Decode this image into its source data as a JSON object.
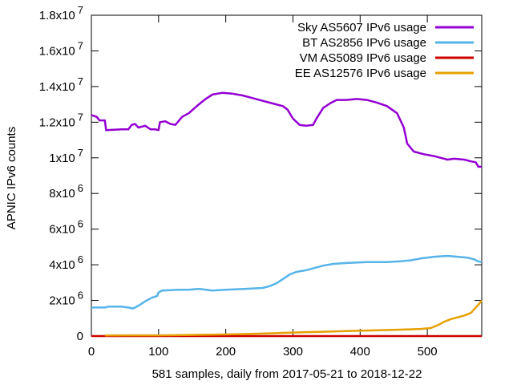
{
  "chart_data": {
    "type": "line",
    "title": "",
    "xlabel": "581 samples, daily from 2017-05-21 to 2018-12-22",
    "ylabel": "APNIC IPv6 counts",
    "xlim": [
      0,
      581
    ],
    "ylim": [
      0,
      18000000
    ],
    "grid": false,
    "legend_position": "top-right",
    "x_ticks": [
      {
        "value": 0,
        "label": "0"
      },
      {
        "value": 100,
        "label": "100"
      },
      {
        "value": 200,
        "label": "200"
      },
      {
        "value": 300,
        "label": "300"
      },
      {
        "value": 400,
        "label": "400"
      },
      {
        "value": 500,
        "label": "500"
      }
    ],
    "y_ticks": [
      {
        "value": 0,
        "base": "0",
        "exp": ""
      },
      {
        "value": 2000000,
        "base": "2x10",
        "exp": "6"
      },
      {
        "value": 4000000,
        "base": "4x10",
        "exp": "6"
      },
      {
        "value": 6000000,
        "base": "6x10",
        "exp": "6"
      },
      {
        "value": 8000000,
        "base": "8x10",
        "exp": "6"
      },
      {
        "value": 10000000,
        "base": "1x10",
        "exp": "7"
      },
      {
        "value": 12000000,
        "base": "1.2x10",
        "exp": "7"
      },
      {
        "value": 14000000,
        "base": "1.4x10",
        "exp": "7"
      },
      {
        "value": 16000000,
        "base": "1.6x10",
        "exp": "7"
      },
      {
        "value": 18000000,
        "base": "1.8x10",
        "exp": "7"
      }
    ],
    "series": [
      {
        "name": "Sky AS5607 IPv6 usage",
        "color": "#9400d3",
        "points": [
          [
            0,
            12400000
          ],
          [
            8,
            12300000
          ],
          [
            12,
            12100000
          ],
          [
            20,
            12100000
          ],
          [
            22,
            11550000
          ],
          [
            45,
            11600000
          ],
          [
            55,
            11600000
          ],
          [
            60,
            11850000
          ],
          [
            65,
            11900000
          ],
          [
            70,
            11700000
          ],
          [
            80,
            11800000
          ],
          [
            88,
            11600000
          ],
          [
            95,
            11600000
          ],
          [
            100,
            11550000
          ],
          [
            102,
            12000000
          ],
          [
            110,
            12050000
          ],
          [
            118,
            11900000
          ],
          [
            125,
            11850000
          ],
          [
            135,
            12300000
          ],
          [
            145,
            12500000
          ],
          [
            160,
            13000000
          ],
          [
            170,
            13300000
          ],
          [
            180,
            13550000
          ],
          [
            195,
            13650000
          ],
          [
            210,
            13600000
          ],
          [
            225,
            13500000
          ],
          [
            240,
            13350000
          ],
          [
            255,
            13200000
          ],
          [
            270,
            13050000
          ],
          [
            285,
            12900000
          ],
          [
            292,
            12700000
          ],
          [
            300,
            12200000
          ],
          [
            310,
            11850000
          ],
          [
            320,
            11800000
          ],
          [
            330,
            11850000
          ],
          [
            335,
            12200000
          ],
          [
            345,
            12800000
          ],
          [
            355,
            13050000
          ],
          [
            365,
            13250000
          ],
          [
            380,
            13250000
          ],
          [
            395,
            13300000
          ],
          [
            410,
            13250000
          ],
          [
            425,
            13100000
          ],
          [
            440,
            12900000
          ],
          [
            455,
            12500000
          ],
          [
            465,
            11700000
          ],
          [
            470,
            10800000
          ],
          [
            480,
            10350000
          ],
          [
            495,
            10200000
          ],
          [
            510,
            10100000
          ],
          [
            520,
            10000000
          ],
          [
            530,
            9900000
          ],
          [
            540,
            9950000
          ],
          [
            555,
            9900000
          ],
          [
            565,
            9800000
          ],
          [
            572,
            9750000
          ],
          [
            576,
            9500000
          ],
          [
            581,
            9500000
          ]
        ]
      },
      {
        "name": "BT AS2856 IPv6 usage",
        "color": "#56b4e9",
        "points": [
          [
            0,
            1600000
          ],
          [
            20,
            1600000
          ],
          [
            25,
            1650000
          ],
          [
            45,
            1650000
          ],
          [
            55,
            1600000
          ],
          [
            62,
            1550000
          ],
          [
            70,
            1700000
          ],
          [
            80,
            1950000
          ],
          [
            90,
            2150000
          ],
          [
            98,
            2250000
          ],
          [
            100,
            2450000
          ],
          [
            105,
            2550000
          ],
          [
            130,
            2600000
          ],
          [
            145,
            2600000
          ],
          [
            160,
            2650000
          ],
          [
            180,
            2550000
          ],
          [
            200,
            2600000
          ],
          [
            230,
            2650000
          ],
          [
            255,
            2700000
          ],
          [
            265,
            2800000
          ],
          [
            275,
            2950000
          ],
          [
            285,
            3200000
          ],
          [
            295,
            3450000
          ],
          [
            305,
            3600000
          ],
          [
            320,
            3700000
          ],
          [
            335,
            3850000
          ],
          [
            345,
            3950000
          ],
          [
            360,
            4050000
          ],
          [
            380,
            4100000
          ],
          [
            410,
            4150000
          ],
          [
            440,
            4150000
          ],
          [
            460,
            4200000
          ],
          [
            475,
            4250000
          ],
          [
            490,
            4350000
          ],
          [
            510,
            4450000
          ],
          [
            530,
            4500000
          ],
          [
            545,
            4450000
          ],
          [
            560,
            4400000
          ],
          [
            570,
            4300000
          ],
          [
            575,
            4200000
          ],
          [
            581,
            4150000
          ]
        ]
      },
      {
        "name": "VM AS5089 IPv6 usage",
        "color": "#cc0000",
        "points": [
          [
            0,
            0
          ],
          [
            581,
            0
          ]
        ]
      },
      {
        "name": "EE AS12576 IPv6 usage",
        "color": "#e69f00",
        "points": [
          [
            20,
            30000
          ],
          [
            60,
            40000
          ],
          [
            100,
            40000
          ],
          [
            140,
            60000
          ],
          [
            180,
            80000
          ],
          [
            220,
            110000
          ],
          [
            260,
            150000
          ],
          [
            300,
            200000
          ],
          [
            340,
            240000
          ],
          [
            380,
            280000
          ],
          [
            420,
            320000
          ],
          [
            460,
            360000
          ],
          [
            490,
            400000
          ],
          [
            505,
            450000
          ],
          [
            515,
            600000
          ],
          [
            525,
            800000
          ],
          [
            535,
            950000
          ],
          [
            545,
            1050000
          ],
          [
            555,
            1150000
          ],
          [
            565,
            1300000
          ],
          [
            572,
            1600000
          ],
          [
            577,
            1800000
          ],
          [
            581,
            2000000
          ]
        ]
      }
    ]
  }
}
